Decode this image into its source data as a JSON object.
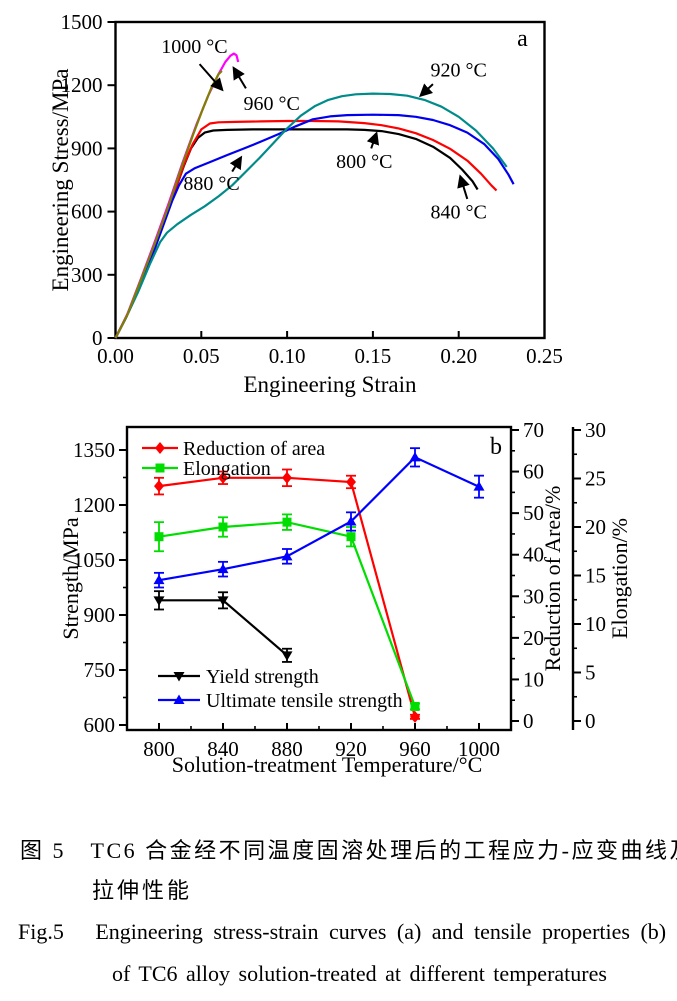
{
  "figure": {
    "captions": {
      "zh_line1": "图 5　TC6 合金经不同温度固溶处理后的工程应力-应变曲线及",
      "zh_line2": "拉伸性能",
      "en_line1": "Fig.5   Engineering stress-strain curves (a) and tensile properties (b)",
      "en_line2": "of TC6 alloy solution-treated at different temperatures"
    }
  },
  "chart_data": [
    {
      "id": "a",
      "type": "line",
      "panel_label": "a",
      "xlabel": "Engineering Strain",
      "ylabel": "Engineering Stress/MPa",
      "xlim": [
        0,
        0.25
      ],
      "ylim": [
        0,
        1500
      ],
      "xticks": [
        0,
        0.05,
        0.1,
        0.15,
        0.2,
        0.25
      ],
      "xtick_labels": [
        "0.00",
        "0.05",
        "0.10",
        "0.15",
        "0.20",
        "0.25"
      ],
      "yticks": [
        0,
        300,
        600,
        900,
        1200,
        1500
      ],
      "ytick_labels": [
        "0",
        "300",
        "600",
        "900",
        "1200",
        "1500"
      ],
      "grid": false,
      "legend_position": "none",
      "series": [
        {
          "name": "800 °C",
          "color": "#000000",
          "points": [
            [
              0,
              0
            ],
            [
              0.006,
              95
            ],
            [
              0.013,
              220
            ],
            [
              0.02,
              360
            ],
            [
              0.027,
              520
            ],
            [
              0.033,
              660
            ],
            [
              0.04,
              820
            ],
            [
              0.044,
              900
            ],
            [
              0.048,
              950
            ],
            [
              0.052,
              975
            ],
            [
              0.057,
              985
            ],
            [
              0.065,
              988
            ],
            [
              0.08,
              990
            ],
            [
              0.1,
              990
            ],
            [
              0.12,
              990
            ],
            [
              0.135,
              990
            ],
            [
              0.145,
              988
            ],
            [
              0.155,
              982
            ],
            [
              0.165,
              968
            ],
            [
              0.175,
              945
            ],
            [
              0.185,
              908
            ],
            [
              0.195,
              855
            ],
            [
              0.202,
              800
            ],
            [
              0.208,
              745
            ],
            [
              0.211,
              705
            ]
          ]
        },
        {
          "name": "840 °C",
          "color": "#ff0000",
          "points": [
            [
              0,
              0
            ],
            [
              0.006,
              95
            ],
            [
              0.013,
              220
            ],
            [
              0.02,
              360
            ],
            [
              0.027,
              520
            ],
            [
              0.033,
              660
            ],
            [
              0.04,
              825
            ],
            [
              0.045,
              920
            ],
            [
              0.05,
              990
            ],
            [
              0.055,
              1018
            ],
            [
              0.06,
              1024
            ],
            [
              0.07,
              1026
            ],
            [
              0.085,
              1028
            ],
            [
              0.1,
              1030
            ],
            [
              0.115,
              1030
            ],
            [
              0.13,
              1028
            ],
            [
              0.145,
              1020
            ],
            [
              0.155,
              1010
            ],
            [
              0.165,
              995
            ],
            [
              0.175,
              972
            ],
            [
              0.185,
              940
            ],
            [
              0.195,
              898
            ],
            [
              0.205,
              842
            ],
            [
              0.213,
              780
            ],
            [
              0.219,
              725
            ],
            [
              0.222,
              700
            ]
          ]
        },
        {
          "name": "880 °C",
          "color": "#0000ee",
          "points": [
            [
              0,
              0
            ],
            [
              0.006,
              95
            ],
            [
              0.013,
              220
            ],
            [
              0.02,
              360
            ],
            [
              0.027,
              515
            ],
            [
              0.033,
              650
            ],
            [
              0.037,
              725
            ],
            [
              0.041,
              780
            ],
            [
              0.046,
              805
            ],
            [
              0.055,
              835
            ],
            [
              0.065,
              868
            ],
            [
              0.075,
              900
            ],
            [
              0.085,
              933
            ],
            [
              0.095,
              968
            ],
            [
              0.105,
              1005
            ],
            [
              0.115,
              1038
            ],
            [
              0.125,
              1052
            ],
            [
              0.135,
              1058
            ],
            [
              0.15,
              1060
            ],
            [
              0.165,
              1058
            ],
            [
              0.175,
              1050
            ],
            [
              0.185,
              1035
            ],
            [
              0.195,
              1010
            ],
            [
              0.205,
              975
            ],
            [
              0.215,
              920
            ],
            [
              0.223,
              850
            ],
            [
              0.229,
              775
            ],
            [
              0.232,
              730
            ]
          ]
        },
        {
          "name": "920 °C",
          "color": "#008b8b",
          "points": [
            [
              0,
              0
            ],
            [
              0.006,
              95
            ],
            [
              0.013,
              215
            ],
            [
              0.02,
              350
            ],
            [
              0.026,
              455
            ],
            [
              0.03,
              500
            ],
            [
              0.036,
              540
            ],
            [
              0.044,
              585
            ],
            [
              0.052,
              625
            ],
            [
              0.06,
              672
            ],
            [
              0.068,
              725
            ],
            [
              0.076,
              790
            ],
            [
              0.084,
              855
            ],
            [
              0.092,
              925
            ],
            [
              0.1,
              995
            ],
            [
              0.108,
              1055
            ],
            [
              0.116,
              1100
            ],
            [
              0.124,
              1130
            ],
            [
              0.132,
              1148
            ],
            [
              0.14,
              1157
            ],
            [
              0.15,
              1160
            ],
            [
              0.16,
              1158
            ],
            [
              0.17,
              1150
            ],
            [
              0.18,
              1130
            ],
            [
              0.19,
              1098
            ],
            [
              0.2,
              1050
            ],
            [
              0.21,
              985
            ],
            [
              0.22,
              900
            ],
            [
              0.228,
              812
            ]
          ]
        },
        {
          "name": "960 °C",
          "color": "#ff00ff",
          "points": [
            [
              0,
              0
            ],
            [
              0.007,
              115
            ],
            [
              0.015,
              285
            ],
            [
              0.023,
              460
            ],
            [
              0.031,
              640
            ],
            [
              0.039,
              830
            ],
            [
              0.047,
              1010
            ],
            [
              0.054,
              1150
            ],
            [
              0.06,
              1252
            ],
            [
              0.064,
              1310
            ],
            [
              0.067,
              1340
            ],
            [
              0.069,
              1350
            ],
            [
              0.0705,
              1342
            ],
            [
              0.0715,
              1310
            ]
          ]
        },
        {
          "name": "1000 °C",
          "color": "#808000",
          "points": [
            [
              0,
              0
            ],
            [
              0.007,
              112
            ],
            [
              0.015,
              280
            ],
            [
              0.023,
              450
            ],
            [
              0.031,
              628
            ],
            [
              0.038,
              800
            ],
            [
              0.045,
              960
            ],
            [
              0.051,
              1090
            ],
            [
              0.056,
              1190
            ],
            [
              0.06,
              1252
            ],
            [
              0.062,
              1268
            ]
          ]
        }
      ],
      "annotations": [
        {
          "label": "1000 °C",
          "text_xy": [
            0.046,
            1385
          ],
          "arrow": [
            [
              0.049,
              1300
            ],
            [
              0.062,
              1180
            ]
          ]
        },
        {
          "label": "960 °C",
          "text_xy": [
            0.091,
            1115
          ],
          "arrow": [
            [
              0.076,
              1185
            ],
            [
              0.069,
              1280
            ]
          ]
        },
        {
          "label": "920 °C",
          "text_xy": [
            0.2,
            1275
          ],
          "arrow": [
            [
              0.185,
              1205
            ],
            [
              0.178,
              1152
            ]
          ]
        },
        {
          "label": "800 °C",
          "text_xy": [
            0.145,
            840
          ],
          "arrow": [
            [
              0.149,
              900
            ],
            [
              0.152,
              970
            ]
          ]
        },
        {
          "label": "880 °C",
          "text_xy": [
            0.056,
            735
          ],
          "arrow": [
            [
              0.068,
              790
            ],
            [
              0.073,
              855
            ]
          ]
        },
        {
          "label": "840 °C",
          "text_xy": [
            0.2,
            600
          ],
          "arrow": [
            [
              0.205,
              660
            ],
            [
              0.201,
              765
            ]
          ]
        }
      ]
    },
    {
      "id": "b",
      "type": "line",
      "panel_label": "b",
      "xlabel": "Solution-treatment Temperature/°C",
      "x_axis": {
        "lim": [
          780,
          1020
        ],
        "ticks": [
          800,
          840,
          880,
          920,
          960,
          1000
        ],
        "minor_step": 20
      },
      "left_axis": {
        "label": "Strength/MPa",
        "lim": [
          585,
          1413
        ],
        "ticks": [
          600,
          750,
          900,
          1050,
          1200,
          1350
        ],
        "minor_step": 75
      },
      "right_axis1": {
        "label": "Reduction of Area/%",
        "lim": [
          0,
          70
        ],
        "ticks": [
          0,
          10,
          20,
          30,
          40,
          50,
          60,
          70
        ],
        "minor_step": 5
      },
      "right_axis2": {
        "label": "Elongation/%",
        "lim": [
          0,
          30
        ],
        "ticks": [
          0,
          5,
          10,
          15,
          20,
          25,
          30
        ],
        "minor_step": 2.5
      },
      "series": [
        {
          "name": "Reduction of area",
          "axis": "roa",
          "color": "#ff0000",
          "marker": "diamond",
          "x": [
            800,
            840,
            880,
            920,
            960
          ],
          "y": [
            56.5,
            58.5,
            58.5,
            57.5,
            1
          ],
          "err": [
            2,
            1.5,
            2,
            1.5,
            0.5
          ]
        },
        {
          "name": "Elongation",
          "axis": "elong",
          "color": "#00dd00",
          "marker": "square",
          "x": [
            800,
            840,
            880,
            920,
            960
          ],
          "y": [
            19,
            20,
            20.5,
            19,
            1.5
          ],
          "err": [
            1.5,
            1,
            0.8,
            1,
            0.3
          ]
        },
        {
          "name": "Yield strength",
          "axis": "strength",
          "color": "#000000",
          "marker": "triangle-down",
          "x": [
            800,
            840,
            880
          ],
          "y": [
            940,
            940,
            790
          ],
          "err": [
            25,
            22,
            18
          ]
        },
        {
          "name": "Ultimate tensile strength",
          "axis": "strength",
          "color": "#0000ff",
          "marker": "triangle-up",
          "x": [
            800,
            840,
            880,
            920,
            960,
            1000
          ],
          "y": [
            995,
            1025,
            1060,
            1155,
            1330,
            1250
          ],
          "err": [
            20,
            20,
            20,
            25,
            25,
            30
          ]
        }
      ],
      "legend_top": [
        "Reduction of area",
        "Elongation"
      ],
      "legend_bottom": [
        "Yield strength",
        "Ultimate tensile strength"
      ]
    }
  ]
}
